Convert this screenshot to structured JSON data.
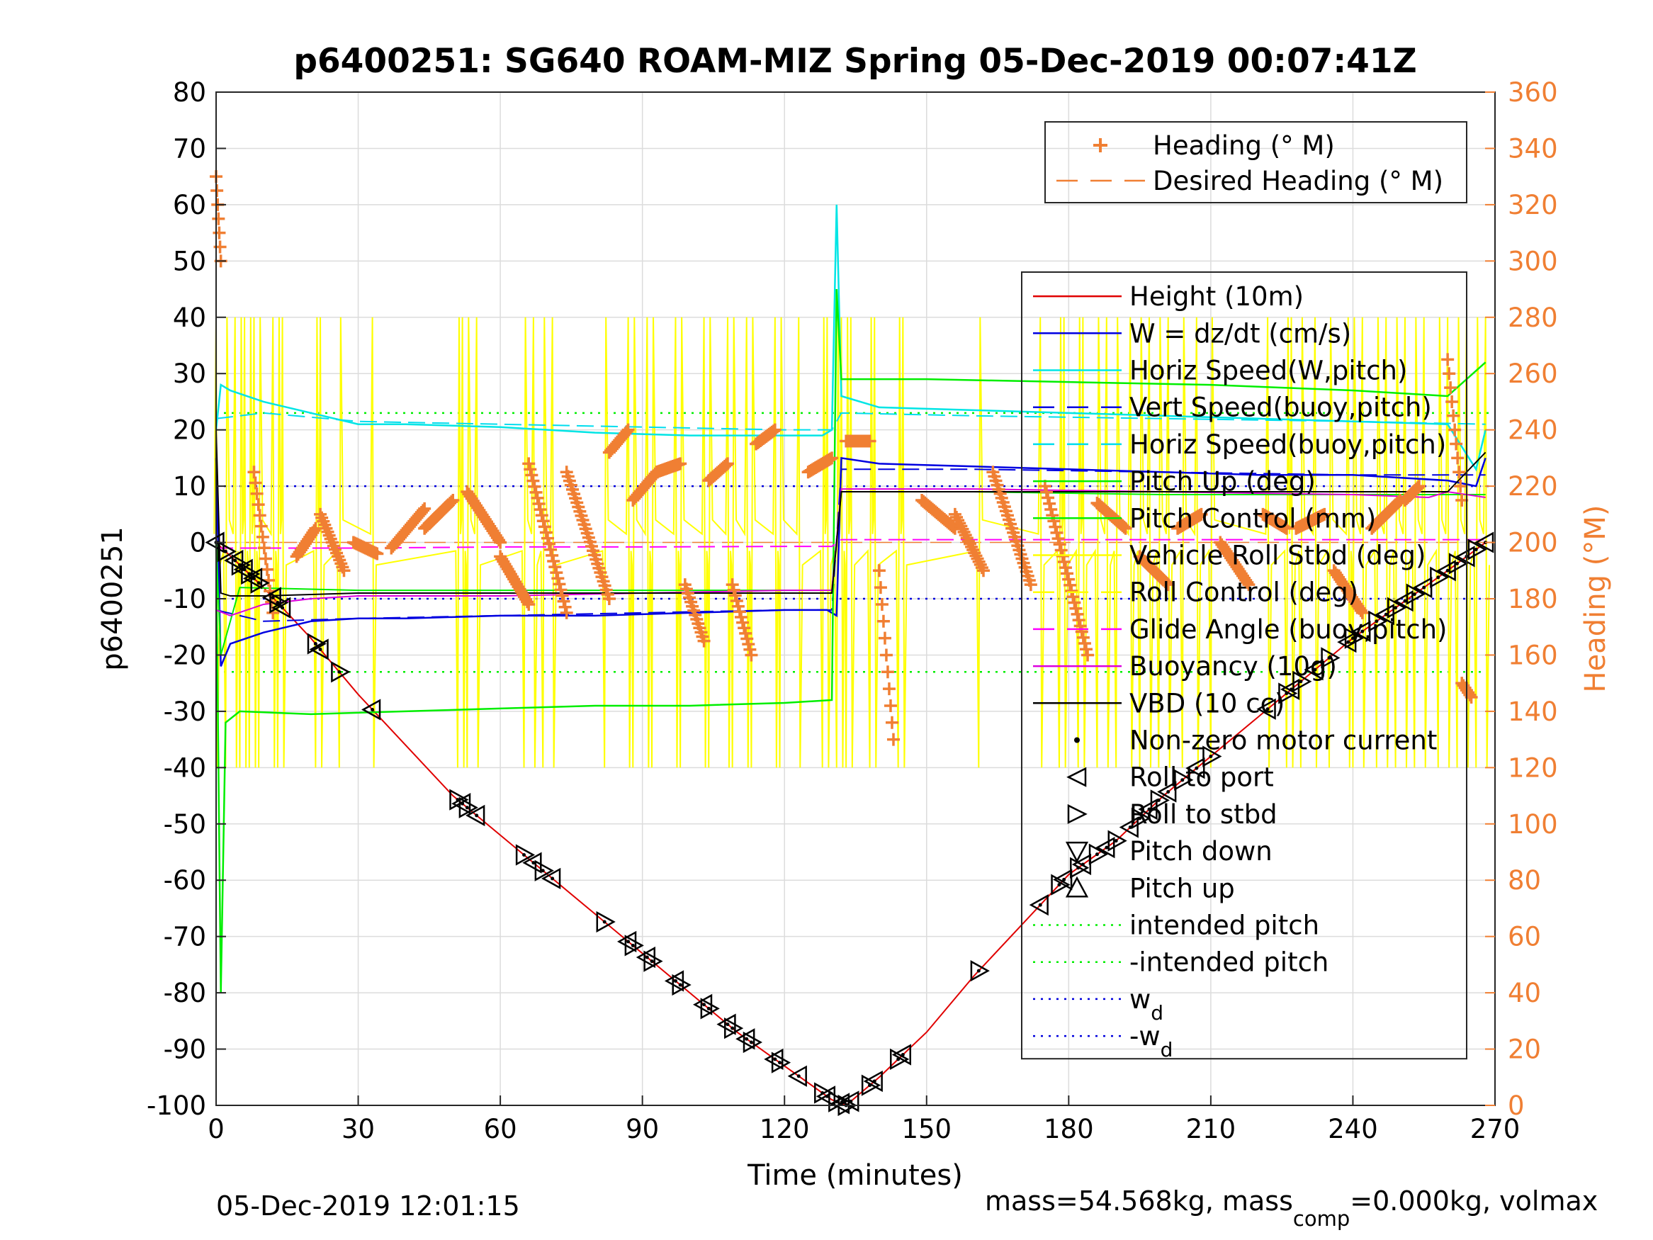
{
  "chart_data": {
    "type": "line",
    "title": "p6400251: SG640 ROAM-MIZ Spring 05-Dec-2019 00:07:41Z",
    "xlabel": "Time (minutes)",
    "ylabel": "p6400251",
    "ylabel_right": "Heading (°M)",
    "xlim": [
      0,
      270
    ],
    "ylim": [
      -100,
      80
    ],
    "ylim_right": [
      0,
      360
    ],
    "xticks": [
      "0",
      "30",
      "60",
      "90",
      "120",
      "150",
      "180",
      "210",
      "240",
      "270"
    ],
    "yticks": [
      "80",
      "70",
      "60",
      "50",
      "40",
      "30",
      "20",
      "10",
      "0",
      "-10",
      "-20",
      "-30",
      "-40",
      "-50",
      "-60",
      "-70",
      "-80",
      "-90",
      "-100"
    ],
    "yticks_right": [
      "360",
      "340",
      "320",
      "300",
      "280",
      "260",
      "240",
      "220",
      "200",
      "180",
      "160",
      "140",
      "120",
      "100",
      "80",
      "60",
      "40",
      "20",
      "0"
    ],
    "grid": true,
    "footer_left": "05-Dec-2019 12:01:15",
    "footer_right_parts": [
      "mass=54.568kg, mass",
      "comp",
      "=0.000kg, volmax"
    ],
    "colors": {
      "height": "#E00000",
      "w": "#0000E0",
      "horiz_w": "#00E5E5",
      "horiz_buoy": "#00DDEE",
      "pitch": "#00EE00",
      "roll": "#FFFF00",
      "glide": "#FF00FF",
      "buoy": "#DD00DD",
      "vbd": "#000000",
      "heading": "#F07F33",
      "intended": "#00EE00",
      "wd": "#0000DD"
    },
    "legend_top": {
      "position": "top-right",
      "entries": [
        {
          "label": "Heading (° M)",
          "style": "plus",
          "color": "#F07F33"
        },
        {
          "label": "Desired Heading (° M)",
          "style": "dash",
          "color": "#F07F33"
        }
      ]
    },
    "legend_main": {
      "position": "right",
      "entries": [
        {
          "label": "Height (10m)",
          "style": "line",
          "color": "#E00000"
        },
        {
          "label": "W = dz/dt (cm/s)",
          "style": "line",
          "color": "#0000E0"
        },
        {
          "label": "Horiz Speed(W,pitch)",
          "style": "line",
          "color": "#00E5E5"
        },
        {
          "label": "Vert Speed(buoy,pitch)",
          "style": "dash",
          "color": "#0000E0"
        },
        {
          "label": "Horiz Speed(buoy,pitch)",
          "style": "dash",
          "color": "#00DDEE"
        },
        {
          "label": "Pitch Up (deg)",
          "style": "line",
          "color": "#00EE00"
        },
        {
          "label": "Pitch Control (mm)",
          "style": "line",
          "color": "#00EE00"
        },
        {
          "label": "Vehicle Roll Stbd (deg)",
          "style": "line",
          "color": "#FFFF00"
        },
        {
          "label": "Roll Control (deg)",
          "style": "dash",
          "color": "#FFFF00"
        },
        {
          "label": "Glide Angle (buoy,pitch)",
          "style": "dash",
          "color": "#FF00FF"
        },
        {
          "label": "Buoyancy (10g)",
          "style": "line",
          "color": "#DD00DD"
        },
        {
          "label": "VBD (10 cc)",
          "style": "line",
          "color": "#000000"
        },
        {
          "label": "Non-zero motor current",
          "style": "dot",
          "color": "#000000"
        },
        {
          "label": "Roll to port",
          "style": "tri-left",
          "color": "#000000"
        },
        {
          "label": "Roll to stbd",
          "style": "tri-right",
          "color": "#000000"
        },
        {
          "label": "Pitch down",
          "style": "tri-down",
          "color": "#000000"
        },
        {
          "label": "Pitch up",
          "style": "tri-up",
          "color": "#000000"
        },
        {
          "label": "intended pitch",
          "style": "dot-line",
          "color": "#00EE00"
        },
        {
          "label": "-intended pitch",
          "style": "dot-line",
          "color": "#00EE00"
        },
        {
          "label": "w",
          "sub": "d",
          "style": "dot-line",
          "color": "#0000DD"
        },
        {
          "label": "-w",
          "sub": "d",
          "style": "dot-line",
          "color": "#0000DD"
        }
      ]
    },
    "series": [
      {
        "name": "Height (10m)",
        "x": [
          0,
          10,
          20,
          30,
          40,
          50,
          60,
          70,
          80,
          90,
          100,
          110,
          120,
          130,
          133,
          140,
          150,
          160,
          170,
          180,
          190,
          200,
          210,
          220,
          230,
          240,
          250,
          260,
          268
        ],
        "y": [
          0,
          -8,
          -17,
          -27,
          -36,
          -45,
          -52,
          -59,
          -66,
          -73,
          -80,
          -87,
          -93,
          -99,
          -100,
          -95,
          -87,
          -77,
          -68,
          -59,
          -53,
          -45,
          -38,
          -31,
          -24,
          -17,
          -11,
          -5,
          0
        ]
      },
      {
        "name": "W = dz/dt (cm/s)",
        "x": [
          0,
          1,
          3,
          10,
          20,
          30,
          40,
          60,
          80,
          100,
          120,
          129,
          131,
          132,
          140,
          160,
          180,
          200,
          220,
          240,
          260,
          266,
          268
        ],
        "y": [
          15,
          -22,
          -18,
          -16,
          -14,
          -13.5,
          -13.5,
          -13,
          -13,
          -12.5,
          -12,
          -12,
          -13,
          15,
          14,
          13.5,
          13,
          12.5,
          12,
          12,
          11,
          10,
          15
        ]
      },
      {
        "name": "Horiz Speed(W,pitch)",
        "x": [
          0,
          1,
          3,
          10,
          20,
          30,
          40,
          60,
          80,
          100,
          120,
          128,
          130,
          131,
          132,
          140,
          160,
          180,
          200,
          220,
          240,
          260,
          266,
          268
        ],
        "y": [
          20,
          28,
          27,
          25,
          23,
          21,
          21,
          20.5,
          19.5,
          19,
          19,
          19,
          20,
          60,
          26,
          24,
          23.5,
          23,
          22.5,
          22,
          21.5,
          21,
          13,
          20
        ]
      },
      {
        "name": "Vert Speed(buoy,pitch)",
        "x": [
          0,
          10,
          30,
          60,
          90,
          120,
          130,
          132,
          160,
          200,
          240,
          268
        ],
        "y": [
          -12,
          -14,
          -13.5,
          -13,
          -12.5,
          -12,
          -12,
          13,
          13,
          12.5,
          12,
          12
        ]
      },
      {
        "name": "Horiz Speed(buoy,pitch)",
        "x": [
          0,
          10,
          30,
          60,
          90,
          120,
          130,
          132,
          160,
          200,
          240,
          268
        ],
        "y": [
          22,
          23,
          21.5,
          21,
          20.5,
          20,
          20,
          23,
          22.5,
          22,
          21.5,
          21
        ]
      },
      {
        "name": "Pitch Up (deg)",
        "x": [
          0,
          1,
          2,
          5,
          20,
          40,
          60,
          80,
          100,
          120,
          130,
          131,
          132,
          150,
          180,
          210,
          240,
          260,
          268
        ],
        "y": [
          0,
          -80,
          -32,
          -30,
          -30.5,
          -30,
          -29.5,
          -29,
          -29,
          -28.5,
          -28,
          45,
          29,
          29,
          28.5,
          28,
          27,
          26,
          32
        ]
      },
      {
        "name": "Pitch Control (mm)",
        "x": [
          0,
          1,
          5,
          30,
          60,
          90,
          120,
          130,
          132,
          160,
          200,
          240,
          268
        ],
        "y": [
          0,
          -20,
          -8,
          -8.5,
          -8.5,
          -8.5,
          -8.5,
          -8.5,
          9,
          9,
          8.5,
          8.5,
          8.5
        ]
      },
      {
        "name": "Glide Angle (buoy,pitch)",
        "x": [
          0,
          10,
          30,
          60,
          90,
          120,
          130,
          132,
          160,
          200,
          240,
          268
        ],
        "y": [
          -1,
          -1,
          -1,
          -0.8,
          -0.8,
          -0.7,
          -0.7,
          0.5,
          0.5,
          0.5,
          0.5,
          0.5
        ]
      },
      {
        "name": "Buoyancy (10g)",
        "x": [
          0,
          3,
          10,
          20,
          30,
          60,
          90,
          120,
          130,
          132,
          160,
          200,
          240,
          256,
          260,
          268
        ],
        "y": [
          -12,
          -13,
          -11,
          -10,
          -9.5,
          -9.5,
          -9,
          -8.5,
          -8.5,
          9.5,
          9.5,
          9,
          8.5,
          8,
          9,
          8
        ]
      },
      {
        "name": "VBD (10 cc)",
        "x": [
          0,
          1,
          3,
          10,
          30,
          60,
          90,
          120,
          130,
          132,
          150,
          180,
          210,
          240,
          260,
          268
        ],
        "y": [
          20,
          -9,
          -9.5,
          -9.5,
          -9,
          -9,
          -9,
          -9,
          -9,
          9,
          9,
          9,
          9,
          9,
          9,
          16
        ]
      }
    ],
    "heading_segments": [
      {
        "x0": 0,
        "h0": 330,
        "x1": 1,
        "h1": 300
      },
      {
        "x0": 8,
        "h0": 225,
        "x1": 12,
        "h1": 175
      },
      {
        "x0": 17,
        "h0": 195,
        "x1": 21,
        "h1": 205
      },
      {
        "x0": 22,
        "h0": 210,
        "x1": 27,
        "h1": 190
      },
      {
        "x0": 29,
        "h0": 200,
        "x1": 34,
        "h1": 196
      },
      {
        "x0": 37,
        "h0": 198,
        "x1": 44,
        "h1": 212
      },
      {
        "x0": 44,
        "h0": 205,
        "x1": 50,
        "h1": 215
      },
      {
        "x0": 53,
        "h0": 218,
        "x1": 60,
        "h1": 200
      },
      {
        "x0": 60,
        "h0": 195,
        "x1": 66,
        "h1": 178
      },
      {
        "x0": 66,
        "h0": 228,
        "x1": 74,
        "h1": 175
      },
      {
        "x0": 74,
        "h0": 225,
        "x1": 83,
        "h1": 180
      },
      {
        "x0": 83,
        "h0": 232,
        "x1": 87,
        "h1": 240
      },
      {
        "x0": 88,
        "h0": 215,
        "x1": 93,
        "h1": 225
      },
      {
        "x0": 93,
        "h0": 225,
        "x1": 98,
        "h1": 228
      },
      {
        "x0": 99,
        "h0": 185,
        "x1": 103,
        "h1": 165
      },
      {
        "x0": 104,
        "h0": 222,
        "x1": 108,
        "h1": 228
      },
      {
        "x0": 109,
        "h0": 185,
        "x1": 113,
        "h1": 160
      },
      {
        "x0": 114,
        "h0": 235,
        "x1": 118,
        "h1": 240
      },
      {
        "x0": 125,
        "h0": 225,
        "x1": 130,
        "h1": 230
      },
      {
        "x0": 133,
        "h0": 236,
        "x1": 138,
        "h1": 236
      },
      {
        "x0": 140,
        "h0": 190,
        "x1": 143,
        "h1": 130
      },
      {
        "x0": 149,
        "h0": 215,
        "x1": 156,
        "h1": 205
      },
      {
        "x0": 156,
        "h0": 210,
        "x1": 162,
        "h1": 190
      },
      {
        "x0": 164,
        "h0": 225,
        "x1": 172,
        "h1": 185
      },
      {
        "x0": 175,
        "h0": 220,
        "x1": 184,
        "h1": 160
      },
      {
        "x0": 186,
        "h0": 214,
        "x1": 192,
        "h1": 205
      },
      {
        "x0": 195,
        "h0": 195,
        "x1": 201,
        "h1": 185
      },
      {
        "x0": 203,
        "h0": 205,
        "x1": 208,
        "h1": 210
      },
      {
        "x0": 212,
        "h0": 200,
        "x1": 218,
        "h1": 185
      },
      {
        "x0": 221,
        "h0": 210,
        "x1": 226,
        "h1": 205
      },
      {
        "x0": 228,
        "h0": 205,
        "x1": 234,
        "h1": 210
      },
      {
        "x0": 236,
        "h0": 190,
        "x1": 242,
        "h1": 175
      },
      {
        "x0": 244,
        "h0": 205,
        "x1": 250,
        "h1": 215
      },
      {
        "x0": 251,
        "h0": 215,
        "x1": 254,
        "h1": 220
      },
      {
        "x0": 260,
        "h0": 265,
        "x1": 263,
        "h1": 215
      },
      {
        "x0": 263,
        "h0": 150,
        "x1": 265,
        "h1": 145
      }
    ],
    "motor_events_x": [
      0,
      2,
      4,
      5,
      6,
      7,
      8,
      9,
      12,
      13,
      14,
      21,
      22,
      26,
      33,
      51,
      52,
      53,
      55,
      65,
      67,
      69,
      71,
      82,
      87,
      88,
      91,
      92,
      97,
      98,
      103,
      104,
      108,
      109,
      112,
      113,
      118,
      119,
      123,
      128,
      129,
      131,
      132,
      133,
      134,
      138,
      139,
      144,
      145,
      161,
      174,
      178,
      179,
      182,
      183,
      186,
      188,
      190,
      193,
      195,
      197,
      199,
      201,
      204,
      207,
      210,
      222,
      226,
      227,
      229,
      232,
      235,
      239,
      240,
      242,
      245,
      247,
      249,
      251,
      253,
      255,
      258,
      260,
      262,
      264,
      266,
      268
    ]
  }
}
